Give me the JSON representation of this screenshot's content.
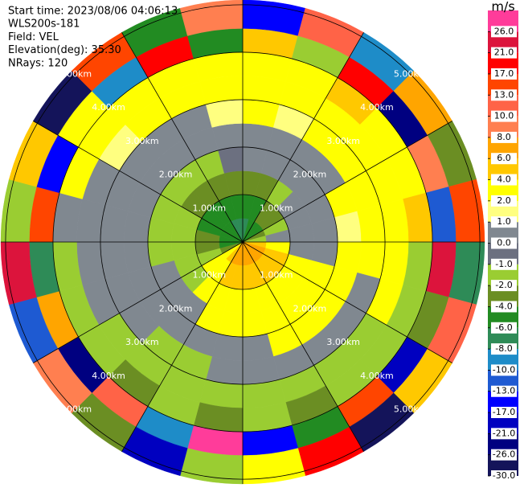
{
  "chart_data": {
    "type": "ppi",
    "header": [
      "Start time: 2023/08/06 04:06:13",
      "WLS200s-181",
      "Field: VEL",
      "Elevation(deg): 35.30",
      "NRays: 120"
    ],
    "range_edges_km": [
      0,
      0.5,
      1,
      1.5,
      2,
      2.5,
      3,
      3.5,
      4,
      4.5,
      5.1
    ],
    "azimuth_edges_deg": [
      0,
      15,
      30,
      45,
      60,
      75,
      90,
      105,
      120,
      135,
      150,
      165,
      180,
      195,
      210,
      225,
      240,
      255,
      270,
      285,
      300,
      315,
      330,
      345,
      360
    ],
    "values": [
      [
        -6.5,
        -5,
        -3,
        0,
        0,
        2.5,
        2.5,
        3,
        5,
        -15
      ],
      [
        -6,
        -4.5,
        -2.5,
        0,
        0,
        1.5,
        2.5,
        3,
        -2,
        12
      ],
      [
        -5.5,
        -3,
        -1.5,
        0,
        0,
        2.5,
        2.5,
        4.5,
        18,
        -9
      ],
      [
        -4.5,
        -2.5,
        0,
        0,
        0.5,
        2.5,
        3,
        2.5,
        -22,
        7
      ],
      [
        -3,
        -1.5,
        0,
        0,
        2.5,
        2.5,
        3,
        2.5,
        9,
        -3
      ],
      [
        -1.5,
        0,
        0,
        0.5,
        1.5,
        2.5,
        2.5,
        4.5,
        -11,
        15
      ],
      [
        5,
        3,
        0,
        0,
        2.5,
        2.5,
        2.5,
        -1.5,
        23,
        -7
      ],
      [
        7,
        4.5,
        3,
        2.5,
        2.5,
        0,
        2.5,
        -1.5,
        -3,
        11
      ],
      [
        7,
        5,
        3,
        2.5,
        3,
        0,
        -1.5,
        -1.5,
        -18,
        5
      ],
      [
        7,
        5,
        2.5,
        2.5,
        2.5,
        0,
        -1.5,
        -1.5,
        14,
        -27
      ],
      [
        7.5,
        5,
        3,
        2.5,
        2.5,
        0,
        -1.5,
        -3,
        -5,
        19
      ],
      [
        7,
        4.5,
        3,
        2.5,
        0,
        0,
        -1.5,
        -1.5,
        -14,
        3
      ],
      [
        7,
        4.5,
        2.5,
        2.5,
        0,
        0,
        -1.5,
        -3,
        27,
        -1.5
      ],
      [
        6.5,
        4.5,
        2.5,
        2.5,
        0,
        -1.5,
        -1.5,
        -1.5,
        -9,
        -19
      ],
      [
        5,
        3,
        2.5,
        0,
        0,
        -1.5,
        -1.5,
        -3,
        11,
        -4
      ],
      [
        3,
        2.5,
        -1.5,
        0,
        0,
        0,
        -1.5,
        -1.5,
        -24,
        8
      ],
      [
        -3,
        -1.5,
        -1.5,
        0,
        0,
        0,
        0,
        -1.5,
        6,
        -12
      ],
      [
        -4.5,
        -3,
        -1.5,
        -1.5,
        0,
        0,
        0,
        -1.5,
        -7,
        22
      ],
      [
        -5,
        -3,
        -1.5,
        -1.5,
        0,
        0,
        0,
        0.5,
        16,
        -2
      ],
      [
        -5.5,
        -4.5,
        -1.5,
        -1.5,
        0,
        0,
        0,
        2.5,
        -16,
        4
      ],
      [
        -6,
        -5,
        -3,
        -1.5,
        0,
        0,
        1.5,
        2.5,
        2.5,
        -28
      ],
      [
        -6,
        -5,
        -3,
        -1.5,
        0,
        0,
        2.5,
        2.5,
        -10,
        13
      ],
      [
        -6.5,
        -5,
        -3,
        -1.5,
        0,
        0.5,
        2.5,
        3,
        20,
        -6
      ],
      [
        -6.5,
        -5,
        -3,
        -0.5,
        0,
        1.5,
        2.5,
        3,
        -4.5,
        9
      ]
    ],
    "rlim": [
      0,
      5.1
    ],
    "rticks": [
      {
        "value": 1,
        "label": "1.00km"
      },
      {
        "value": 2,
        "label": "2.00km"
      },
      {
        "value": 3,
        "label": "3.00km"
      },
      {
        "value": 4,
        "label": "4.00km"
      },
      {
        "value": 5,
        "label": "5.00km"
      }
    ],
    "azimuth_gridlines": [
      0,
      30,
      60,
      90,
      120,
      150,
      180,
      210,
      240,
      270,
      300,
      330
    ],
    "colorbar": {
      "label": "m/s",
      "boundaries": [
        -30,
        -26,
        -21,
        -17,
        -13,
        -10,
        -8,
        -6,
        -4,
        -2,
        -1,
        0,
        1,
        2,
        4,
        6,
        8,
        10,
        13,
        17,
        21,
        26,
        30
      ],
      "colors": [
        "#14145a",
        "#000080",
        "#0000c0",
        "#0000ff",
        "#1e5ad2",
        "#1e8cc8",
        "#2e8b57",
        "#228b22",
        "#6b8e23",
        "#9acd32",
        "#6c7080",
        "#808890",
        "#ffff80",
        "#ffff00",
        "#ffc800",
        "#ffa500",
        "#ff7f50",
        "#ff6347",
        "#ff4500",
        "#ff0000",
        "#dc143c",
        "#ff3c9a"
      ],
      "ticks": [
        {
          "value": 26,
          "label": "26.0"
        },
        {
          "value": 21,
          "label": "21.0"
        },
        {
          "value": 17,
          "label": "17.0"
        },
        {
          "value": 13,
          "label": "13.0"
        },
        {
          "value": 10,
          "label": "10.0"
        },
        {
          "value": 8,
          "label": "8.0"
        },
        {
          "value": 6,
          "label": "6.0"
        },
        {
          "value": 4,
          "label": "4.0"
        },
        {
          "value": 2,
          "label": "2.0"
        },
        {
          "value": 1,
          "label": "1.0"
        },
        {
          "value": 0,
          "label": "0.0"
        },
        {
          "value": -1,
          "label": "-1.0"
        },
        {
          "value": -2,
          "label": "-2.0"
        },
        {
          "value": -4,
          "label": "-4.0"
        },
        {
          "value": -6,
          "label": "-6.0"
        },
        {
          "value": -8,
          "label": "-8.0"
        },
        {
          "value": -10,
          "label": "-10.0"
        },
        {
          "value": -13,
          "label": "-13.0"
        },
        {
          "value": -17,
          "label": "-17.0"
        },
        {
          "value": -21,
          "label": "-21.0"
        },
        {
          "value": -26,
          "label": "-26.0"
        },
        {
          "value": -30,
          "label": "-30.0"
        }
      ]
    }
  }
}
